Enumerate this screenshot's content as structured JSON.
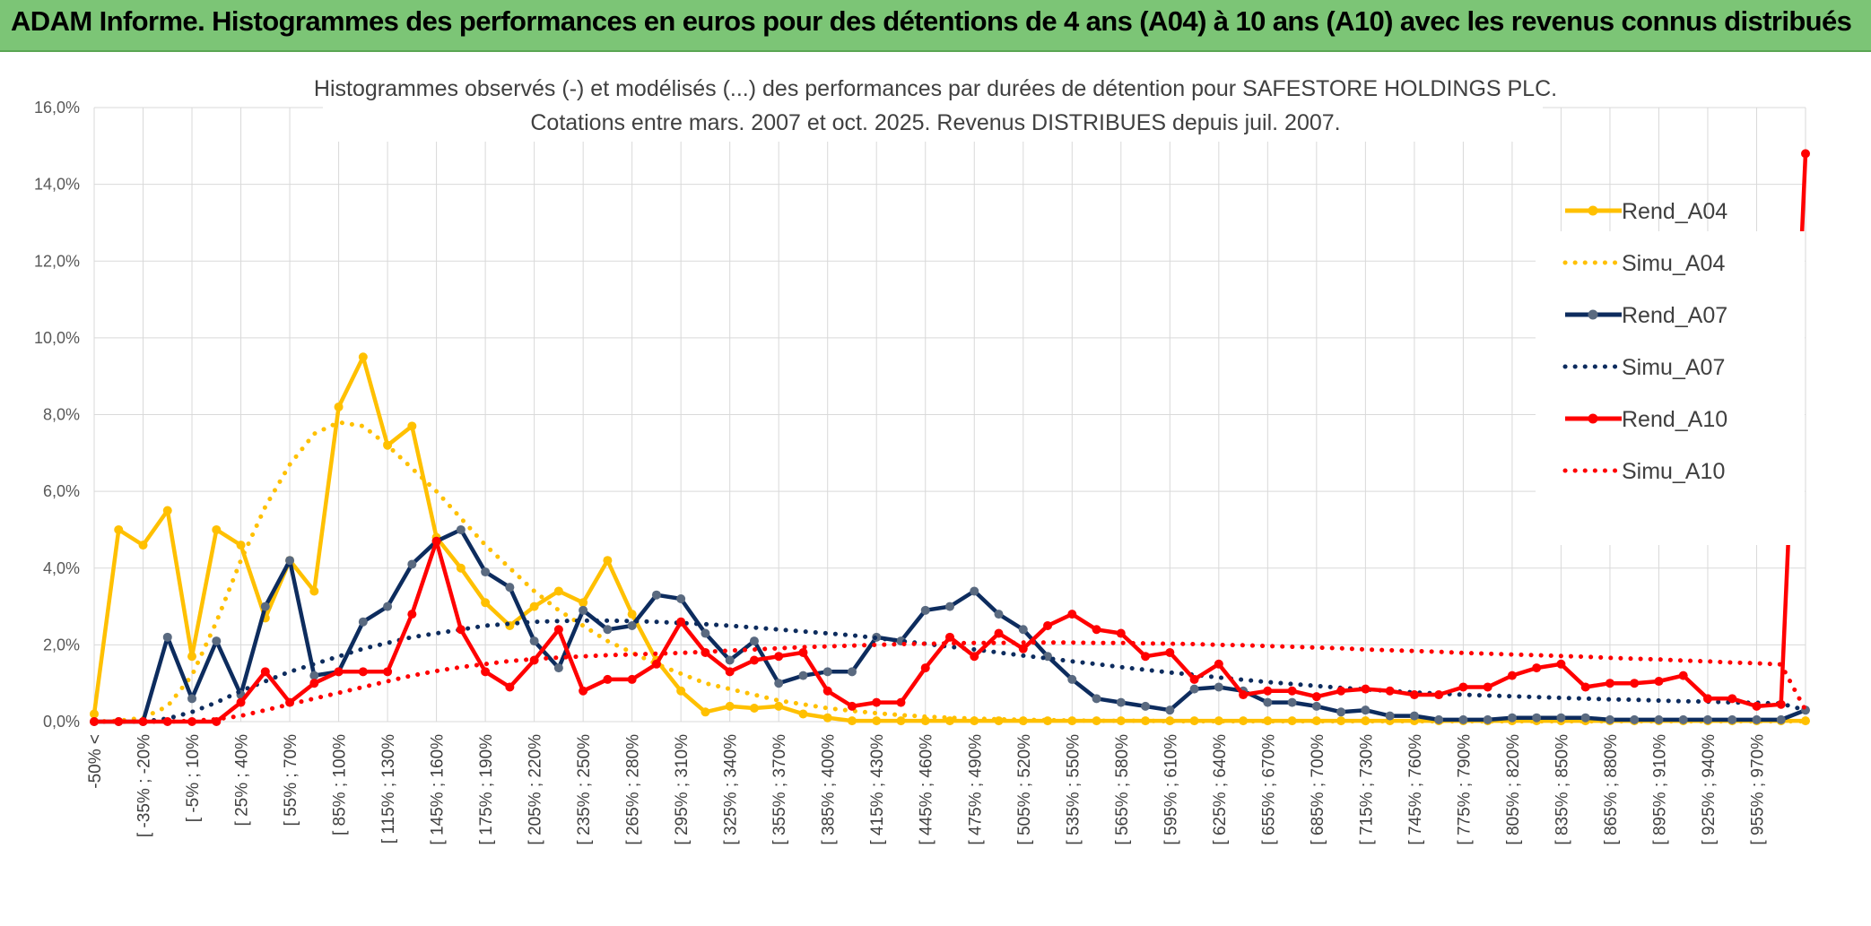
{
  "banner": {
    "title": "ADAM Informe. Histogrammes des performances en euros pour des détentions de 4 ans (A04) à 10 ans (A10) avec les revenus connus distribués"
  },
  "chart_data": {
    "type": "line",
    "title": "Histogrammes observés (-) et modélisés (...) des performances par durées de détention pour SAFESTORE HOLDINGS PLC.",
    "subtitle": "Cotations entre mars. 2007 et oct. 2025. Revenus DISTRIBUES depuis juil. 2007.",
    "ylim": [
      0,
      16
    ],
    "y_ticks": [
      "0,0%",
      "2,0%",
      "4,0%",
      "6,0%",
      "8,0%",
      "10,0%",
      "12,0%",
      "14,0%",
      "16,0%"
    ],
    "x_tick_labels": [
      "-50% <",
      "[ -35% ; -20%",
      "[ -5% ; 10%",
      "[ 25% ; 40%",
      "[ 55% ; 70%",
      "[ 85% ; 100%",
      "[ 115% ; 130%",
      "[ 145% ; 160%",
      "[ 175% ; 190%",
      "[ 205% ; 220%",
      "[ 235% ; 250%",
      "[ 265% ; 280%",
      "[ 295% ; 310%",
      "[ 325% ; 340%",
      "[ 355% ; 370%",
      "[ 385% ; 400%",
      "[ 415% ; 430%",
      "[ 445% ; 460%",
      "[ 475% ; 490%",
      "[ 505% ; 520%",
      "[ 535% ; 550%",
      "[ 565% ; 580%",
      "[ 595% ; 610%",
      "[ 625% ; 640%",
      "[ 655% ; 670%",
      "[ 685% ; 700%",
      "[ 715% ; 730%",
      "[ 745% ; 760%",
      "[ 775% ; 790%",
      "[ 805% ; 820%",
      "[ 835% ; 850%",
      "[ 865% ; 880%",
      "[ 895% ; 910%",
      "[ 925% ; 940%",
      "[ 955% ; 970%"
    ],
    "grid": true,
    "legend_position": "right",
    "series": [
      {
        "name": "Rend_A04",
        "color": "#ffc000",
        "style": "solid",
        "values": [
          0.2,
          5.0,
          4.6,
          5.5,
          1.7,
          5.0,
          4.6,
          2.7,
          4.2,
          3.4,
          8.2,
          9.5,
          7.2,
          7.7,
          4.8,
          4.0,
          3.1,
          2.5,
          3.0,
          3.4,
          3.1,
          4.2,
          2.8,
          1.6,
          0.8,
          0.25,
          0.4,
          0.35,
          0.4,
          0.2,
          0.1,
          0.02,
          0.02,
          0.02,
          0.02,
          0.02,
          0.02,
          0.02,
          0.02,
          0.02,
          0.02,
          0.02,
          0.02,
          0.02,
          0.02,
          0.02,
          0.02,
          0.02,
          0.02,
          0.02,
          0.02,
          0.02,
          0.02,
          0.02,
          0.02,
          0.02,
          0.02,
          0.02,
          0.02,
          0.02,
          0.02,
          0.02,
          0.02,
          0.02,
          0.02,
          0.02,
          0.02,
          0.02,
          0.02,
          0.02,
          0.02
        ]
      },
      {
        "name": "Simu_A04",
        "color": "#ffc000",
        "style": "dotted",
        "values": [
          0.0,
          0.02,
          0.1,
          0.4,
          1.2,
          2.6,
          4.2,
          5.6,
          6.7,
          7.5,
          7.8,
          7.7,
          7.2,
          6.6,
          6.0,
          5.3,
          4.6,
          4.0,
          3.4,
          2.9,
          2.5,
          2.1,
          1.8,
          1.5,
          1.25,
          1.0,
          0.85,
          0.7,
          0.55,
          0.45,
          0.35,
          0.28,
          0.22,
          0.17,
          0.13,
          0.1,
          0.08,
          0.06,
          0.05,
          0.04,
          0.03,
          0.02,
          0.02,
          0.02,
          0.01,
          0.01,
          0.01,
          0.01,
          0.01,
          0.01,
          0.01,
          0.01,
          0.01,
          0.01,
          0.01,
          0.01,
          0.01,
          0.01,
          0.01,
          0.01,
          0.01,
          0.01,
          0.01,
          0.01,
          0.01,
          0.01,
          0.01,
          0.01,
          0.01,
          0.01,
          0.01
        ]
      },
      {
        "name": "Rend_A07",
        "color": "#0d2c5e",
        "style": "solid",
        "values": [
          0.0,
          0.0,
          0.0,
          2.2,
          0.6,
          2.1,
          0.7,
          3.0,
          4.2,
          1.2,
          1.3,
          2.6,
          3.0,
          4.1,
          4.7,
          5.0,
          3.9,
          3.5,
          2.1,
          1.4,
          2.9,
          2.4,
          2.5,
          3.3,
          3.2,
          2.3,
          1.6,
          2.1,
          1.0,
          1.2,
          1.3,
          1.3,
          2.2,
          2.1,
          2.9,
          3.0,
          3.4,
          2.8,
          2.4,
          1.7,
          1.1,
          0.6,
          0.5,
          0.4,
          0.3,
          0.85,
          0.9,
          0.8,
          0.5,
          0.5,
          0.4,
          0.25,
          0.3,
          0.15,
          0.15,
          0.05,
          0.05,
          0.05,
          0.1,
          0.1,
          0.1,
          0.1,
          0.05,
          0.05,
          0.05,
          0.05,
          0.05,
          0.05,
          0.05,
          0.05,
          0.3
        ]
      },
      {
        "name": "Simu_A07",
        "color": "#0d2c5e",
        "style": "dotted",
        "values": [
          0.0,
          0.0,
          0.0,
          0.08,
          0.25,
          0.5,
          0.8,
          1.05,
          1.3,
          1.5,
          1.7,
          1.9,
          2.05,
          2.2,
          2.3,
          2.4,
          2.5,
          2.55,
          2.6,
          2.62,
          2.63,
          2.63,
          2.62,
          2.6,
          2.57,
          2.54,
          2.5,
          2.45,
          2.4,
          2.35,
          2.3,
          2.25,
          2.18,
          2.1,
          2.03,
          1.95,
          1.88,
          1.8,
          1.72,
          1.65,
          1.57,
          1.5,
          1.42,
          1.35,
          1.28,
          1.22,
          1.15,
          1.09,
          1.03,
          0.98,
          0.93,
          0.88,
          0.84,
          0.8,
          0.76,
          0.73,
          0.7,
          0.68,
          0.66,
          0.64,
          0.62,
          0.6,
          0.58,
          0.57,
          0.55,
          0.53,
          0.52,
          0.5,
          0.49,
          0.47,
          0.3
        ]
      },
      {
        "name": "Rend_A10",
        "color": "#ff0000",
        "style": "solid",
        "values": [
          0.0,
          0.0,
          0.0,
          0.0,
          0.0,
          0.0,
          0.5,
          1.3,
          0.5,
          1.0,
          1.3,
          1.3,
          1.3,
          2.8,
          4.7,
          2.4,
          1.3,
          0.9,
          1.6,
          2.4,
          0.8,
          1.1,
          1.1,
          1.5,
          2.6,
          1.8,
          1.3,
          1.6,
          1.7,
          1.8,
          0.8,
          0.4,
          0.5,
          0.5,
          1.4,
          2.2,
          1.7,
          2.3,
          1.9,
          2.5,
          2.8,
          2.4,
          2.3,
          1.7,
          1.8,
          1.1,
          1.5,
          0.7,
          0.8,
          0.8,
          0.65,
          0.8,
          0.85,
          0.8,
          0.7,
          0.7,
          0.9,
          0.9,
          1.2,
          1.4,
          1.5,
          0.9,
          1.0,
          1.0,
          1.05,
          1.2,
          0.6,
          0.6,
          0.4,
          0.45,
          14.8
        ]
      },
      {
        "name": "Simu_A10",
        "color": "#ff0000",
        "style": "dotted",
        "values": [
          0.0,
          0.0,
          0.0,
          0.0,
          0.02,
          0.06,
          0.15,
          0.3,
          0.45,
          0.6,
          0.75,
          0.9,
          1.05,
          1.2,
          1.32,
          1.42,
          1.5,
          1.58,
          1.63,
          1.67,
          1.7,
          1.73,
          1.75,
          1.77,
          1.79,
          1.82,
          1.85,
          1.88,
          1.91,
          1.94,
          1.96,
          1.98,
          2.0,
          2.02,
          2.03,
          2.04,
          2.05,
          2.05,
          2.06,
          2.06,
          2.06,
          2.05,
          2.05,
          2.04,
          2.03,
          2.02,
          2.0,
          1.99,
          1.97,
          1.95,
          1.93,
          1.91,
          1.88,
          1.86,
          1.84,
          1.82,
          1.79,
          1.77,
          1.75,
          1.73,
          1.71,
          1.69,
          1.66,
          1.64,
          1.62,
          1.59,
          1.57,
          1.54,
          1.52,
          1.49,
          0.3
        ]
      }
    ]
  }
}
